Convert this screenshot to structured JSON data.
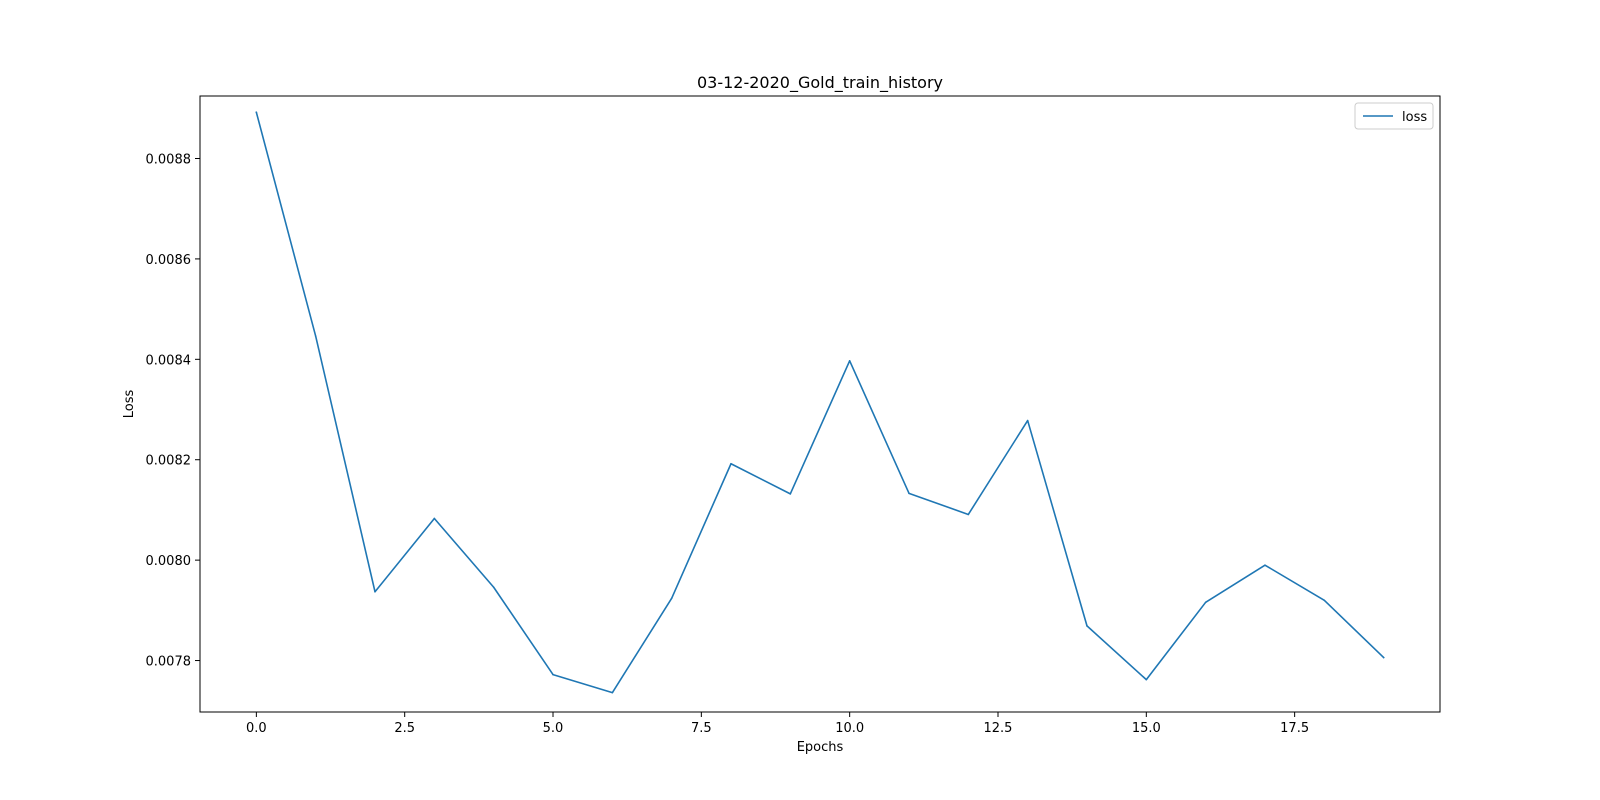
{
  "chart_data": {
    "type": "line",
    "title": "03-12-2020_Gold_train_history",
    "xlabel": "Epochs",
    "ylabel": "Loss",
    "xlim": [
      -0.95,
      19.95
    ],
    "ylim": [
      0.0076975,
      0.0089245
    ],
    "xticks": [
      0.0,
      2.5,
      5.0,
      7.5,
      10.0,
      12.5,
      15.0,
      17.5
    ],
    "xtick_labels": [
      "0.0",
      "2.5",
      "5.0",
      "7.5",
      "10.0",
      "12.5",
      "15.0",
      "17.5"
    ],
    "yticks": [
      0.0078,
      0.008,
      0.0082,
      0.0084,
      0.0086,
      0.0088
    ],
    "ytick_labels": [
      "0.0078",
      "0.0080",
      "0.0082",
      "0.0084",
      "0.0086",
      "0.0088"
    ],
    "grid": false,
    "legend_position": "top-right",
    "series": [
      {
        "name": "loss",
        "color": "#1f77b4",
        "x": [
          0,
          1,
          2,
          3,
          4,
          5,
          6,
          7,
          8,
          9,
          10,
          11,
          12,
          13,
          14,
          15,
          16,
          17,
          18,
          19
        ],
        "y": [
          0.008892,
          0.008446,
          0.007937,
          0.008083,
          0.007946,
          0.007772,
          0.007736,
          0.007924,
          0.008192,
          0.008132,
          0.008397,
          0.008133,
          0.008091,
          0.008278,
          0.007869,
          0.007762,
          0.007916,
          0.00799,
          0.00792,
          0.007806
        ]
      }
    ]
  }
}
